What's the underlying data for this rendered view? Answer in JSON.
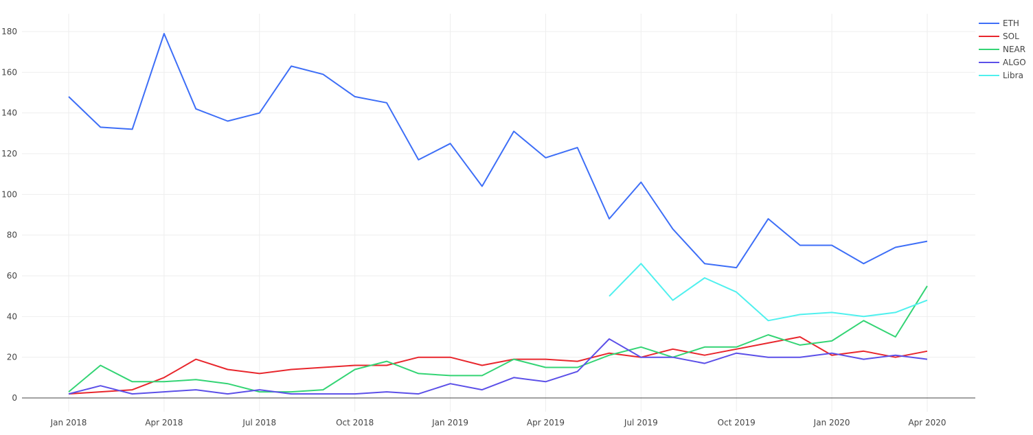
{
  "chart_data": {
    "type": "line",
    "title": "",
    "xlabel": "",
    "ylabel": "",
    "ylim": [
      -8,
      190
    ],
    "yticks": [
      0,
      20,
      40,
      60,
      80,
      100,
      120,
      140,
      160,
      180
    ],
    "xtick_labels": [
      "Jan 2018",
      "Apr 2018",
      "Jul 2018",
      "Oct 2018",
      "Jan 2019",
      "Apr 2019",
      "Jul 2019",
      "Oct 2019",
      "Jan 2020",
      "Apr 2020"
    ],
    "grid": true,
    "legend_position": "top-right",
    "x": [
      "2018-01",
      "2018-02",
      "2018-03",
      "2018-04",
      "2018-05",
      "2018-06",
      "2018-07",
      "2018-08",
      "2018-09",
      "2018-10",
      "2018-11",
      "2018-12",
      "2019-01",
      "2019-02",
      "2019-03",
      "2019-04",
      "2019-05",
      "2019-06",
      "2019-07",
      "2019-08",
      "2019-09",
      "2019-10",
      "2019-11",
      "2019-12",
      "2020-01",
      "2020-02",
      "2020-03",
      "2020-04"
    ],
    "series": [
      {
        "name": "ETH",
        "color": "#3d6ef7",
        "values": [
          148,
          133,
          132,
          179,
          142,
          136,
          140,
          163,
          159,
          148,
          145,
          117,
          125,
          104,
          131,
          118,
          123,
          88,
          106,
          83,
          66,
          64,
          88,
          75,
          75,
          66,
          74,
          77
        ]
      },
      {
        "name": "SOL",
        "color": "#e8262c",
        "values": [
          2,
          3,
          4,
          10,
          19,
          14,
          12,
          14,
          15,
          16,
          16,
          20,
          20,
          16,
          19,
          19,
          18,
          22,
          20,
          24,
          21,
          24,
          27,
          30,
          21,
          23,
          20,
          23
        ]
      },
      {
        "name": "NEAR",
        "color": "#33d474",
        "values": [
          3,
          16,
          8,
          8,
          9,
          7,
          3,
          3,
          4,
          14,
          18,
          12,
          11,
          11,
          19,
          15,
          15,
          21,
          25,
          20,
          25,
          25,
          31,
          26,
          28,
          38,
          30,
          55
        ]
      },
      {
        "name": "ALGO",
        "color": "#5b4fe8",
        "values": [
          2,
          6,
          2,
          3,
          4,
          2,
          4,
          2,
          2,
          2,
          3,
          2,
          7,
          4,
          10,
          8,
          13,
          29,
          20,
          20,
          17,
          22,
          20,
          20,
          22,
          19,
          21,
          19
        ]
      },
      {
        "name": "Libra",
        "color": "#4ff0ee",
        "values": [
          null,
          null,
          null,
          null,
          null,
          null,
          null,
          null,
          null,
          null,
          null,
          null,
          null,
          null,
          null,
          null,
          null,
          50,
          66,
          48,
          59,
          52,
          38,
          41,
          42,
          40,
          42,
          48
        ]
      }
    ]
  }
}
